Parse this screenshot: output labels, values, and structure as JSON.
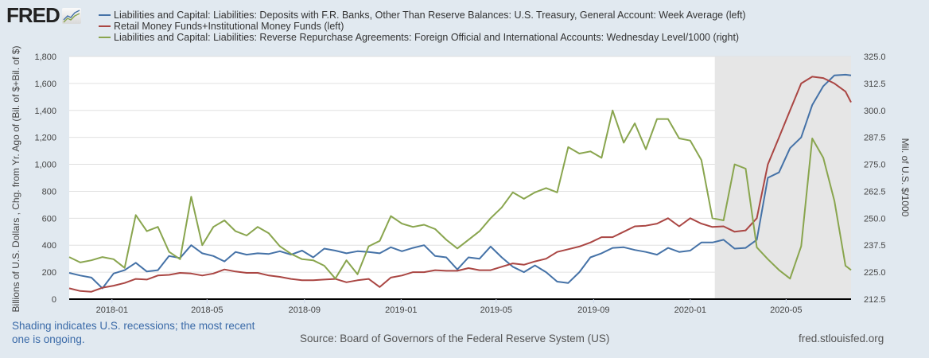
{
  "header": {
    "logo_text": "FRED",
    "logo_icon": "line-chart-icon"
  },
  "legend": [
    {
      "label": "Liabilities and Capital: Liabilities: Deposits with F.R. Banks, Other Than Reserve Balances: U.S. Treasury, General Account: Week Average (left)",
      "color": "#4572a7"
    },
    {
      "label": "Retail Money Funds+Institutional Money Funds (left)",
      "color": "#aa4643"
    },
    {
      "label": "Liabilities and Capital: Liabilities: Reverse Repurchase Agreements: Foreign Official and International Accounts: Wednesday Level/1000 (right)",
      "color": "#89a54e"
    }
  ],
  "footer": {
    "recession_note": "Shading indicates U.S. recessions; the most recent one is ongoing.",
    "source": "Source: Board of Governors of the Federal Reserve System (US)",
    "url": "fred.stlouisfed.org"
  },
  "chart_data": {
    "type": "line",
    "title": "",
    "xlabel": "",
    "ylabel": "Billions of U.S. Dollars , Chg. from Yr. Ago of (Bil. of $+Bil. of $)",
    "ylabel_right": "Mil. of U.S. $/1000",
    "ylim": [
      0,
      1800
    ],
    "ylim_right": [
      212.5,
      325.0
    ],
    "yticks": [
      "0",
      "200",
      "400",
      "600",
      "800",
      "1,000",
      "1,200",
      "1,400",
      "1,600",
      "1,800"
    ],
    "yticks_right": [
      "212.5",
      "225.0",
      "237.5",
      "250.0",
      "262.5",
      "275.0",
      "287.5",
      "300.0",
      "312.5",
      "325.0"
    ],
    "xticks": [
      "2018-01",
      "2018-05",
      "2018-09",
      "2019-01",
      "2019-05",
      "2019-09",
      "2020-01",
      "2020-05"
    ],
    "x_range": [
      "2017-11-08",
      "2020-07-22"
    ],
    "grid": true,
    "legend_position": "top",
    "recession_shading": {
      "start": "2020-02",
      "end": "2020-07-22",
      "label": "Recession (ongoing)"
    },
    "x": [
      "2017-11-08",
      "2017-11-22",
      "2017-12-06",
      "2017-12-20",
      "2018-01-03",
      "2018-01-17",
      "2018-01-31",
      "2018-02-14",
      "2018-02-28",
      "2018-03-14",
      "2018-03-28",
      "2018-04-11",
      "2018-04-25",
      "2018-05-09",
      "2018-05-23",
      "2018-06-06",
      "2018-06-20",
      "2018-07-04",
      "2018-07-18",
      "2018-08-01",
      "2018-08-15",
      "2018-08-29",
      "2018-09-12",
      "2018-09-26",
      "2018-10-10",
      "2018-10-24",
      "2018-11-07",
      "2018-11-21",
      "2018-12-05",
      "2018-12-19",
      "2019-01-02",
      "2019-01-16",
      "2019-01-30",
      "2019-02-13",
      "2019-02-27",
      "2019-03-13",
      "2019-03-27",
      "2019-04-10",
      "2019-04-24",
      "2019-05-08",
      "2019-05-22",
      "2019-06-05",
      "2019-06-19",
      "2019-07-03",
      "2019-07-17",
      "2019-07-31",
      "2019-08-14",
      "2019-08-28",
      "2019-09-11",
      "2019-09-25",
      "2019-10-09",
      "2019-10-23",
      "2019-11-06",
      "2019-11-20",
      "2019-12-04",
      "2019-12-18",
      "2020-01-01",
      "2020-01-15",
      "2020-01-29",
      "2020-02-12",
      "2020-02-26",
      "2020-03-11",
      "2020-03-25",
      "2020-04-08",
      "2020-04-22",
      "2020-05-06",
      "2020-05-20",
      "2020-06-03",
      "2020-06-17",
      "2020-07-01",
      "2020-07-15",
      "2020-07-22"
    ],
    "series": [
      {
        "name": "U.S. Treasury, General Account: Week Average (left)",
        "axis": "left",
        "color": "#4572a7",
        "values": [
          195,
          175,
          160,
          80,
          190,
          215,
          270,
          205,
          215,
          320,
          305,
          400,
          340,
          320,
          280,
          350,
          330,
          340,
          335,
          355,
          330,
          360,
          310,
          375,
          360,
          340,
          355,
          350,
          340,
          385,
          355,
          380,
          400,
          320,
          310,
          220,
          310,
          300,
          390,
          310,
          240,
          200,
          250,
          200,
          130,
          120,
          200,
          310,
          340,
          380,
          385,
          365,
          350,
          330,
          380,
          350,
          360,
          420,
          420,
          440,
          375,
          380,
          440,
          900,
          940,
          1120,
          1200,
          1440,
          1580,
          1660,
          1665,
          1660
        ]
      },
      {
        "name": "Retail Money Funds+Institutional Money Funds (left)",
        "axis": "left",
        "color": "#aa4643",
        "values": [
          80,
          60,
          55,
          85,
          100,
          120,
          150,
          145,
          175,
          180,
          195,
          190,
          175,
          190,
          220,
          205,
          195,
          195,
          175,
          165,
          150,
          140,
          140,
          145,
          150,
          125,
          140,
          150,
          90,
          160,
          175,
          200,
          200,
          215,
          210,
          210,
          230,
          215,
          215,
          240,
          265,
          255,
          280,
          300,
          350,
          370,
          390,
          420,
          460,
          460,
          500,
          540,
          545,
          560,
          600,
          540,
          600,
          560,
          535,
          540,
          500,
          510,
          600,
          1000,
          1200,
          1400,
          1600,
          1650,
          1640,
          1600,
          1540,
          1460
        ]
      },
      {
        "name": "Reverse Repurchase Agreements: Foreign Official and International Accounts: Wednesday Level/1000 (right)",
        "axis": "right",
        "color": "#89a54e",
        "values": [
          232.0,
          229.5,
          230.5,
          232.0,
          231.0,
          227.0,
          251.5,
          244.0,
          246.0,
          234.5,
          231.0,
          260.0,
          237.5,
          246.0,
          249.0,
          244.0,
          242.0,
          246.0,
          243.0,
          237.0,
          233.5,
          231.0,
          230.5,
          228.0,
          222.0,
          230.5,
          224.0,
          237.0,
          239.5,
          251.0,
          247.5,
          246.0,
          247.0,
          245.0,
          240.0,
          236.0,
          240.0,
          244.0,
          250.0,
          255.0,
          262.0,
          259.0,
          262.0,
          264.0,
          262.0,
          283.0,
          280.0,
          281.0,
          278.0,
          300.0,
          285.0,
          294.0,
          282.0,
          296.0,
          296.0,
          287.0,
          286.0,
          277.0,
          250.0,
          249.0,
          275.0,
          273.0,
          236.5,
          231.0,
          226.0,
          222.0,
          237.0,
          287.0,
          278.0,
          258.0,
          228.0,
          226.0
        ]
      }
    ]
  }
}
